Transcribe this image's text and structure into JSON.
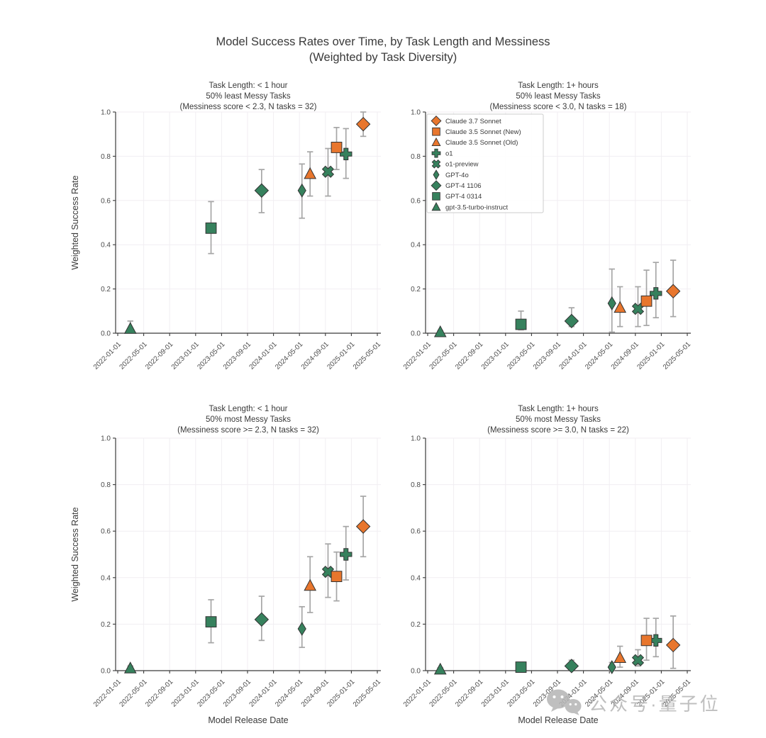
{
  "figure": {
    "title_line1": "Model Success Rates over Time, by Task Length and Messiness",
    "title_line2": "(Weighted by Task Diversity)",
    "watermark_text": "公众号·量子位"
  },
  "colors": {
    "claude_orange": "#E8762D",
    "openai_green": "#36815D",
    "errorbar_gray": "#A6A6A6",
    "gridline": "#F1EEF2",
    "axis": "#3A3A3A",
    "watermark_gray": "#B5B5B5"
  },
  "chart_data": {
    "type": "scatter",
    "title": "Model Success Rates over Time, by Task Length and Messiness (Weighted by Task Diversity)",
    "grid": true,
    "legend_position": "upper-left of top-right panel",
    "x_axis": {
      "label": "Model Release Date",
      "ticks": [
        "2022-01-01",
        "2022-05-01",
        "2022-09-01",
        "2023-01-01",
        "2023-05-01",
        "2023-09-01",
        "2024-01-01",
        "2024-05-01",
        "2024-09-01",
        "2025-01-01",
        "2025-05-01"
      ]
    },
    "y_axis": {
      "label": "Weighted Success Rate",
      "ticks": [
        "0.0",
        "0.2",
        "0.4",
        "0.6",
        "0.8",
        "1.0"
      ],
      "lim": [
        0,
        1
      ]
    },
    "models": [
      {
        "id": "claude-3-7-sonnet",
        "label": "Claude 3.7 Sonnet",
        "marker": "diamond",
        "color": "#E8762D",
        "release_date": "2025-02-24"
      },
      {
        "id": "claude-3-5-sonnet-new",
        "label": "Claude 3.5 Sonnet (New)",
        "marker": "square",
        "color": "#E8762D",
        "release_date": "2024-10-22"
      },
      {
        "id": "claude-3-5-sonnet-old",
        "label": "Claude 3.5 Sonnet (Old)",
        "marker": "triangle",
        "color": "#E8762D",
        "release_date": "2024-06-20"
      },
      {
        "id": "o1",
        "label": "o1",
        "marker": "plus",
        "color": "#36815D",
        "release_date": "2024-12-05"
      },
      {
        "id": "o1-preview",
        "label": "o1-preview",
        "marker": "x",
        "color": "#36815D",
        "release_date": "2024-09-12"
      },
      {
        "id": "gpt-4o",
        "label": "GPT-4o",
        "marker": "thin-diamond",
        "color": "#36815D",
        "release_date": "2024-05-13"
      },
      {
        "id": "gpt-4-1106",
        "label": "GPT-4 1106",
        "marker": "diamond",
        "color": "#36815D",
        "release_date": "2023-11-06"
      },
      {
        "id": "gpt-4-0314",
        "label": "GPT-4 0314",
        "marker": "square",
        "color": "#36815D",
        "release_date": "2023-03-14"
      },
      {
        "id": "gpt-3-5-turbo-instruct",
        "label": "gpt-3.5-turbo-instruct",
        "marker": "triangle",
        "color": "#36815D",
        "release_date": "2022-03-01"
      }
    ],
    "subplots": [
      {
        "id": "top-left",
        "title_lines": [
          "Task Length: < 1 hour",
          "50% least Messy Tasks",
          "(Messiness score < 2.3, N tasks = 32)"
        ],
        "points": [
          {
            "model": "claude-3-7-sonnet",
            "y": 0.945,
            "lo": 0.89,
            "hi": 1.0
          },
          {
            "model": "claude-3-5-sonnet-new",
            "y": 0.84,
            "lo": 0.74,
            "hi": 0.93
          },
          {
            "model": "claude-3-5-sonnet-old",
            "y": 0.72,
            "lo": 0.62,
            "hi": 0.82
          },
          {
            "model": "o1",
            "y": 0.81,
            "lo": 0.7,
            "hi": 0.925
          },
          {
            "model": "o1-preview",
            "y": 0.73,
            "lo": 0.62,
            "hi": 0.835
          },
          {
            "model": "gpt-4o",
            "y": 0.645,
            "lo": 0.52,
            "hi": 0.765
          },
          {
            "model": "gpt-4-1106",
            "y": 0.645,
            "lo": 0.545,
            "hi": 0.74
          },
          {
            "model": "gpt-4-0314",
            "y": 0.475,
            "lo": 0.36,
            "hi": 0.595
          },
          {
            "model": "gpt-3-5-turbo-instruct",
            "y": 0.02,
            "lo": 0.005,
            "hi": 0.055
          }
        ]
      },
      {
        "id": "top-right",
        "title_lines": [
          "Task Length: 1+ hours",
          "50% least Messy Tasks",
          "(Messiness score < 3.0, N tasks = 18)"
        ],
        "points": [
          {
            "model": "claude-3-7-sonnet",
            "y": 0.19,
            "lo": 0.075,
            "hi": 0.33
          },
          {
            "model": "claude-3-5-sonnet-new",
            "y": 0.145,
            "lo": 0.035,
            "hi": 0.285
          },
          {
            "model": "claude-3-5-sonnet-old",
            "y": 0.115,
            "lo": 0.03,
            "hi": 0.21
          },
          {
            "model": "o1",
            "y": 0.18,
            "lo": 0.07,
            "hi": 0.32
          },
          {
            "model": "o1-preview",
            "y": 0.11,
            "lo": 0.03,
            "hi": 0.21
          },
          {
            "model": "gpt-4o",
            "y": 0.135,
            "lo": 0.005,
            "hi": 0.29
          },
          {
            "model": "gpt-4-1106",
            "y": 0.055,
            "lo": 0.03,
            "hi": 0.115
          },
          {
            "model": "gpt-4-0314",
            "y": 0.04,
            "lo": 0.015,
            "hi": 0.1
          },
          {
            "model": "gpt-3-5-turbo-instruct",
            "y": 0.005,
            "lo": 0.0,
            "hi": 0.012
          }
        ]
      },
      {
        "id": "bottom-left",
        "title_lines": [
          "Task Length: < 1 hour",
          "50% most Messy Tasks",
          "(Messiness score >= 2.3, N tasks = 32)"
        ],
        "points": [
          {
            "model": "claude-3-7-sonnet",
            "y": 0.62,
            "lo": 0.49,
            "hi": 0.75
          },
          {
            "model": "claude-3-5-sonnet-new",
            "y": 0.405,
            "lo": 0.3,
            "hi": 0.51
          },
          {
            "model": "claude-3-5-sonnet-old",
            "y": 0.365,
            "lo": 0.25,
            "hi": 0.49
          },
          {
            "model": "o1",
            "y": 0.5,
            "lo": 0.39,
            "hi": 0.62
          },
          {
            "model": "o1-preview",
            "y": 0.425,
            "lo": 0.315,
            "hi": 0.545
          },
          {
            "model": "gpt-4o",
            "y": 0.18,
            "lo": 0.1,
            "hi": 0.275
          },
          {
            "model": "gpt-4-1106",
            "y": 0.22,
            "lo": 0.13,
            "hi": 0.32
          },
          {
            "model": "gpt-4-0314",
            "y": 0.21,
            "lo": 0.12,
            "hi": 0.305
          },
          {
            "model": "gpt-3-5-turbo-instruct",
            "y": 0.01,
            "lo": 0.0,
            "hi": 0.02
          }
        ]
      },
      {
        "id": "bottom-right",
        "title_lines": [
          "Task Length: 1+ hours",
          "50% most Messy Tasks",
          "(Messiness score >= 3.0, N tasks = 22)"
        ],
        "points": [
          {
            "model": "claude-3-7-sonnet",
            "y": 0.11,
            "lo": 0.01,
            "hi": 0.235
          },
          {
            "model": "claude-3-5-sonnet-new",
            "y": 0.13,
            "lo": 0.045,
            "hi": 0.225
          },
          {
            "model": "claude-3-5-sonnet-old",
            "y": 0.055,
            "lo": 0.015,
            "hi": 0.105
          },
          {
            "model": "o1",
            "y": 0.13,
            "lo": 0.06,
            "hi": 0.225
          },
          {
            "model": "o1-preview",
            "y": 0.045,
            "lo": 0.02,
            "hi": 0.09
          },
          {
            "model": "gpt-4o",
            "y": 0.015,
            "lo": 0.0,
            "hi": 0.035
          },
          {
            "model": "gpt-4-1106",
            "y": 0.02,
            "lo": 0.005,
            "hi": 0.045
          },
          {
            "model": "gpt-4-0314",
            "y": 0.015,
            "lo": 0.005,
            "hi": 0.032
          },
          {
            "model": "gpt-3-5-turbo-instruct",
            "y": 0.005,
            "lo": 0.0,
            "hi": 0.012
          }
        ]
      }
    ]
  }
}
